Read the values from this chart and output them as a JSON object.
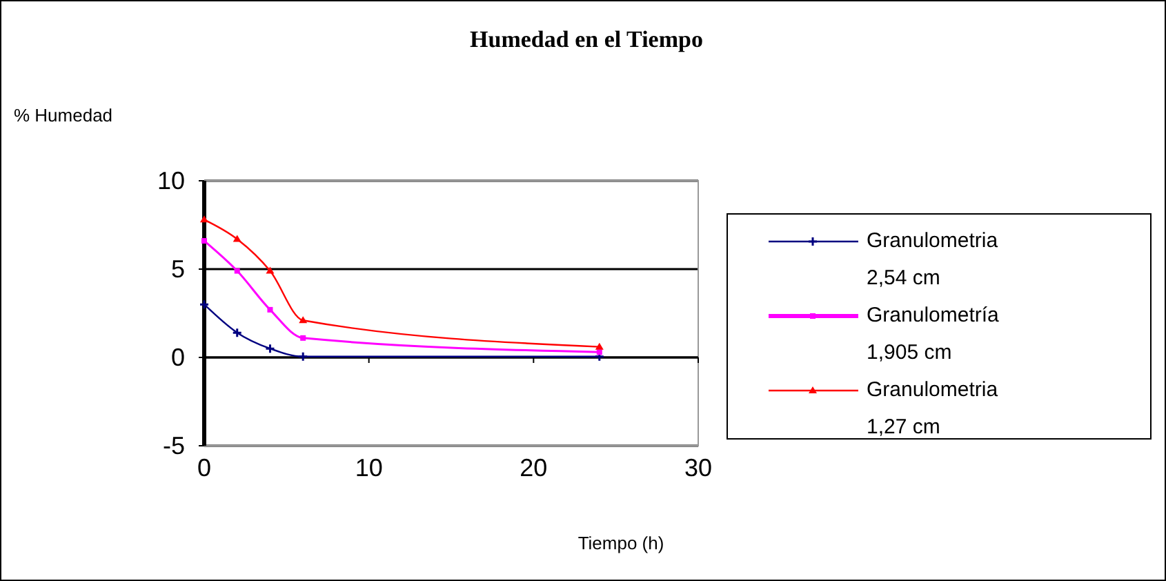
{
  "chart_data": {
    "type": "line",
    "title": "Humedad en el Tiempo",
    "ylabel": "% Humedad",
    "xlabel": "Tiempo (h)",
    "xlim": [
      0,
      30
    ],
    "xticks": [
      0,
      10,
      20,
      30
    ],
    "ylim": [
      -5,
      10
    ],
    "yticks": [
      -5,
      0,
      5,
      10
    ],
    "grid": "y",
    "legend": "right",
    "series": [
      {
        "name": "Granulometria 2,54 cm",
        "color": "#000080",
        "marker": "cross",
        "x": [
          0,
          2,
          4,
          6,
          24
        ],
        "values": [
          3,
          1.4,
          0.5,
          0.05,
          0.05
        ]
      },
      {
        "name": "Granulometría 1,905 cm",
        "color": "#ff00ff",
        "marker": "square",
        "x": [
          0,
          2,
          4,
          6,
          24
        ],
        "values": [
          6.6,
          4.9,
          2.7,
          1.1,
          0.3
        ]
      },
      {
        "name": "Granulometria 1,27 cm",
        "color": "#ff0000",
        "marker": "triangle",
        "x": [
          0,
          2,
          4,
          6,
          24
        ],
        "values": [
          7.8,
          6.7,
          4.9,
          2.1,
          0.6
        ]
      }
    ]
  }
}
